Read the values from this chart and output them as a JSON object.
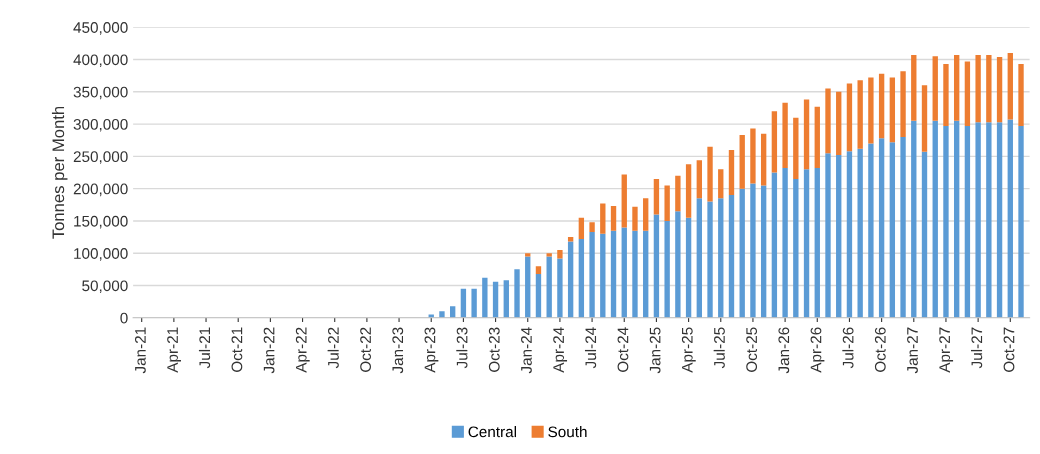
{
  "chart_data": {
    "type": "bar",
    "stacked": true,
    "ylabel": "Tonnes per Month",
    "categories": [
      "Jan-21",
      null,
      null,
      "Apr-21",
      null,
      null,
      "Jul-21",
      null,
      null,
      "Oct-21",
      null,
      null,
      "Jan-22",
      null,
      null,
      "Apr-22",
      null,
      null,
      "Jul-22",
      null,
      null,
      "Oct-22",
      null,
      null,
      "Jan-23",
      null,
      null,
      "Apr-23",
      null,
      null,
      "Jul-23",
      null,
      null,
      "Oct-23",
      null,
      null,
      "Jan-24",
      null,
      null,
      "Apr-24",
      null,
      null,
      "Jul-24",
      null,
      null,
      "Oct-24",
      null,
      null,
      "Jan-25",
      null,
      null,
      "Apr-25",
      null,
      null,
      "Jul-25",
      null,
      null,
      "Oct-25",
      null,
      null,
      "Jan-26",
      null,
      null,
      "Apr-26",
      null,
      null,
      "Jul-26",
      null,
      null,
      "Oct-26",
      null,
      null,
      "Jan-27",
      null,
      null,
      "Apr-27",
      null,
      null,
      "Jul-27",
      null,
      null,
      "Oct-27",
      null
    ],
    "series": [
      {
        "name": "Central",
        "color": "#5b9bd5",
        "values": [
          0,
          0,
          0,
          0,
          0,
          0,
          0,
          0,
          0,
          0,
          0,
          0,
          0,
          0,
          0,
          0,
          0,
          0,
          0,
          0,
          0,
          0,
          0,
          0,
          0,
          0,
          0,
          5000,
          10000,
          18000,
          45000,
          45000,
          62000,
          56000,
          58000,
          75000,
          95000,
          68000,
          95000,
          92000,
          118000,
          122000,
          133000,
          130000,
          135000,
          140000,
          135000,
          135000,
          160000,
          150000,
          165000,
          155000,
          185000,
          180000,
          185000,
          190000,
          200000,
          208000,
          205000,
          225000,
          232000,
          215000,
          230000,
          232000,
          255000,
          252000,
          258000,
          262000,
          270000,
          278000,
          272000,
          280000,
          305000,
          257000,
          305000,
          297000,
          305000,
          297000,
          303000,
          303000,
          303000,
          307000,
          297000
        ]
      },
      {
        "name": "South",
        "color": "#ed7d31",
        "values": [
          0,
          0,
          0,
          0,
          0,
          0,
          0,
          0,
          0,
          0,
          0,
          0,
          0,
          0,
          0,
          0,
          0,
          0,
          0,
          0,
          0,
          0,
          0,
          0,
          0,
          0,
          0,
          0,
          0,
          0,
          0,
          0,
          0,
          0,
          0,
          0,
          5000,
          12000,
          5000,
          13000,
          7000,
          33000,
          15000,
          47000,
          38000,
          82000,
          37000,
          50000,
          55000,
          55000,
          55000,
          83000,
          59000,
          85000,
          45000,
          70000,
          83000,
          85000,
          80000,
          95000,
          101000,
          95000,
          108000,
          95000,
          100000,
          98000,
          105000,
          106000,
          102000,
          100000,
          100000,
          102000,
          102000,
          103000,
          100000,
          96000,
          102000,
          100000,
          104000,
          104000,
          101000,
          103000,
          96000
        ]
      }
    ],
    "ylim": [
      0,
      450000
    ],
    "yticks": [
      {
        "value": 0,
        "label": "0"
      },
      {
        "value": 50000,
        "label": "50,000"
      },
      {
        "value": 100000,
        "label": "100,000"
      },
      {
        "value": 150000,
        "label": "150,000"
      },
      {
        "value": 200000,
        "label": "200,000"
      },
      {
        "value": 250000,
        "label": "250,000"
      },
      {
        "value": 300000,
        "label": "300,000"
      },
      {
        "value": 350000,
        "label": "350,000"
      },
      {
        "value": 400000,
        "label": "400,000"
      },
      {
        "value": 450000,
        "label": "450,000"
      }
    ],
    "grid": "y",
    "legend": "bottom"
  }
}
